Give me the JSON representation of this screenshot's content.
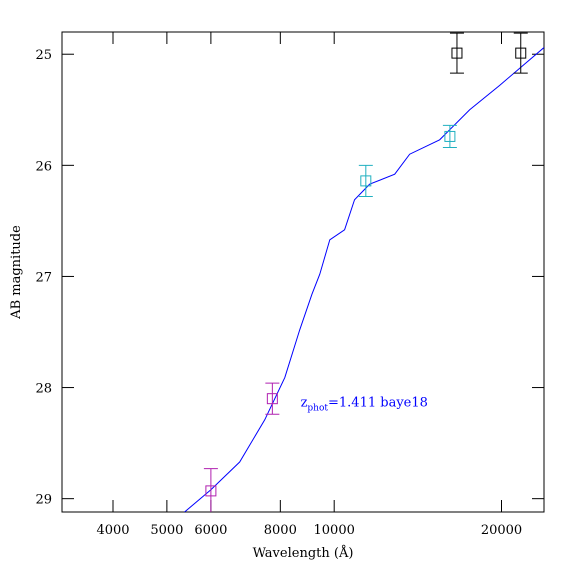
{
  "chart_data": {
    "type": "scatter",
    "x_label": "Wavelength (Å)",
    "y_label": "AB magnitude",
    "x_log": true,
    "y_inverted": true,
    "xlim": [
      3238,
      23850
    ],
    "ylim": [
      24.8,
      29.12
    ],
    "xticks": [
      4000,
      5000,
      6000,
      8000,
      10000,
      20000
    ],
    "yticks": [
      25,
      26,
      27,
      28,
      29
    ],
    "annotation": {
      "main": "z",
      "sub": "phot",
      "rest": "=1.411 baye18",
      "color": "#0000ff",
      "x": 8700,
      "y": 28.17
    },
    "model": {
      "color": "#0000ff",
      "x": [
        5380,
        6000,
        6760,
        7500,
        8150,
        8670,
        9120,
        9420,
        9820,
        10440,
        10880,
        11580,
        12850,
        13670,
        15480,
        17530,
        19850,
        23850
      ],
      "values": [
        29.12,
        28.92,
        28.67,
        28.29,
        27.91,
        27.48,
        27.16,
        26.98,
        26.67,
        26.58,
        26.31,
        26.17,
        26.08,
        25.9,
        25.77,
        25.5,
        25.28,
        24.94
      ]
    },
    "series": [
      {
        "color": "#b020b0",
        "x": [
          6000,
          7740
        ],
        "values": [
          28.93,
          28.1
        ],
        "errors": [
          0.2,
          0.14
        ]
      },
      {
        "color": "#20b0c0",
        "x": [
          11400,
          16150
        ],
        "values": [
          26.14,
          25.74
        ],
        "errors": [
          0.14,
          0.1
        ]
      },
      {
        "color": "#000000",
        "x": [
          16630,
          21660
        ],
        "values": [
          24.99,
          24.99
        ],
        "errors": [
          0.18,
          0.18
        ]
      }
    ]
  }
}
